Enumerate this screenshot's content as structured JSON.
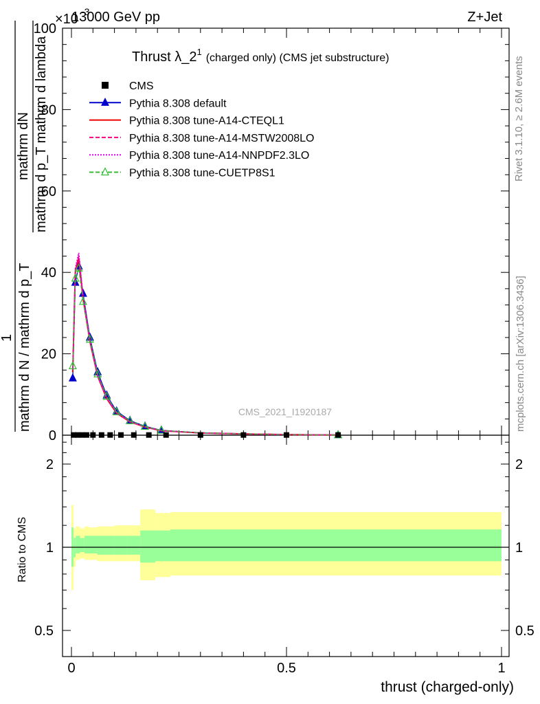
{
  "header": {
    "left": "13000 GeV pp",
    "right": "Z+Jet",
    "exponent": "×10",
    "exponent_power": "-3"
  },
  "side": {
    "rivet": "Rivet 3.1.10, ≥ 2.6M events",
    "mcplots": "mcplots.cern.ch [arXiv:1306.3436]"
  },
  "chart_data": {
    "type": "line",
    "title_main": "Thrust λ_2",
    "title_sup": "1",
    "title_rest": "(charged only) (CMS jet substructure)",
    "watermark": "CMS_2021_I1920187",
    "ylabel_num": "mathrm dN",
    "ylabel_den": "mathrm d p_T mathrm d lambda",
    "ylabel_num2": "1",
    "ylabel_den2": "mathrm d N / mathrm d p_T",
    "xlabel": "thrust (charged-only)",
    "ratio_ylabel": "Ratio to CMS",
    "xlim": [
      0,
      1
    ],
    "ylim": [
      0,
      100
    ],
    "ratio_ylim": [
      0.4,
      2.5
    ],
    "x_ticks": [
      "0",
      "0.5",
      "1"
    ],
    "y_ticks": [
      "0",
      "20",
      "40",
      "60",
      "80",
      "100"
    ],
    "ratio_ticks": [
      "0.5",
      "1",
      "2"
    ],
    "legend": [
      {
        "label": "CMS",
        "color": "#000000",
        "style": "square"
      },
      {
        "label": "Pythia 8.308 default",
        "color": "#0000cc",
        "style": "solid-triangle"
      },
      {
        "label": "Pythia 8.308 tune-A14-CTEQL1",
        "color": "#ee0000",
        "style": "solid"
      },
      {
        "label": "Pythia 8.308 tune-A14-MSTW2008LO",
        "color": "#ff0080",
        "style": "dashed"
      },
      {
        "label": "Pythia 8.308 tune-A14-NNPDF2.3LO",
        "color": "#e000e0",
        "style": "dotted"
      },
      {
        "label": "Pythia 8.308 tune-CUETP8S1",
        "color": "#33bb33",
        "style": "dashed-open-triangle"
      }
    ],
    "data_x": [
      0.005,
      0.015,
      0.025,
      0.035,
      0.05,
      0.07,
      0.09,
      0.115,
      0.145,
      0.18,
      0.22,
      0.3,
      0.4,
      0.5,
      0.62
    ],
    "data_y": [
      0.05,
      0.05,
      0.05,
      0.05,
      0.05,
      0.05,
      0.05,
      0.05,
      0.05,
      0.05,
      0.05,
      0.05,
      0.05,
      0.05,
      0.05
    ],
    "series": [
      {
        "name": "Pythia 8.308 default",
        "x": [
          0.003,
          0.009,
          0.017,
          0.027,
          0.043,
          0.061,
          0.082,
          0.105,
          0.136,
          0.171,
          0.209,
          0.3,
          0.4,
          0.5,
          0.62
        ],
        "y": [
          14.0,
          37.5,
          41.5,
          34.8,
          24.0,
          15.5,
          9.8,
          5.9,
          3.6,
          2.2,
          1.2,
          0.6,
          0.35,
          0.15,
          0.05
        ]
      },
      {
        "name": "Pythia 8.308 tune-A14-CTEQL1",
        "x": [
          0.003,
          0.009,
          0.017,
          0.027,
          0.043,
          0.061,
          0.082,
          0.105,
          0.136,
          0.171,
          0.209,
          0.3,
          0.4,
          0.5,
          0.62
        ],
        "y": [
          15.5,
          40.0,
          43.5,
          33.5,
          23.0,
          14.5,
          9.0,
          5.4,
          3.3,
          2.0,
          1.1,
          0.55,
          0.32,
          0.14,
          0.05
        ]
      },
      {
        "name": "Pythia 8.308 tune-A14-MSTW2008LO",
        "x": [
          0.003,
          0.009,
          0.017,
          0.027,
          0.043,
          0.061,
          0.082,
          0.105,
          0.136,
          0.171,
          0.209,
          0.3,
          0.4,
          0.5,
          0.62
        ],
        "y": [
          16.0,
          40.5,
          44.0,
          33.8,
          23.2,
          14.6,
          9.1,
          5.5,
          3.35,
          2.05,
          1.1,
          0.55,
          0.32,
          0.14,
          0.05
        ]
      },
      {
        "name": "Pythia 8.308 tune-A14-NNPDF2.3LO",
        "x": [
          0.003,
          0.009,
          0.017,
          0.027,
          0.043,
          0.061,
          0.082,
          0.105,
          0.136,
          0.171,
          0.209,
          0.3,
          0.4,
          0.5,
          0.62
        ],
        "y": [
          16.5,
          41.0,
          44.8,
          34.0,
          23.4,
          14.7,
          9.2,
          5.5,
          3.35,
          2.05,
          1.1,
          0.55,
          0.32,
          0.14,
          0.05
        ]
      },
      {
        "name": "Pythia 8.308 tune-CUETP8S1",
        "x": [
          0.003,
          0.009,
          0.017,
          0.027,
          0.043,
          0.061,
          0.082,
          0.105,
          0.136,
          0.171,
          0.209,
          0.3,
          0.4,
          0.5,
          0.62
        ],
        "y": [
          17.0,
          38.5,
          41.0,
          32.8,
          23.5,
          15.0,
          9.5,
          5.7,
          3.5,
          2.1,
          1.15,
          0.58,
          0.33,
          0.14,
          0.05
        ]
      }
    ],
    "ratio_bands": {
      "edges": [
        0.0,
        0.005,
        0.01,
        0.02,
        0.03,
        0.04,
        0.06,
        0.08,
        0.1,
        0.13,
        0.16,
        0.195,
        0.23,
        1.0
      ],
      "yellow_lo": [
        0.7,
        0.85,
        0.9,
        0.91,
        0.9,
        0.9,
        0.89,
        0.89,
        0.89,
        0.89,
        0.76,
        0.78,
        0.79
      ],
      "yellow_hi": [
        1.42,
        1.17,
        1.19,
        1.17,
        1.19,
        1.18,
        1.19,
        1.19,
        1.2,
        1.2,
        1.37,
        1.33,
        1.34
      ],
      "green_lo": [
        0.85,
        0.92,
        0.95,
        0.96,
        0.95,
        0.95,
        0.94,
        0.94,
        0.94,
        0.94,
        0.88,
        0.89,
        0.89
      ],
      "green_hi": [
        1.18,
        1.08,
        1.1,
        1.08,
        1.1,
        1.1,
        1.1,
        1.1,
        1.1,
        1.1,
        1.15,
        1.15,
        1.16
      ]
    }
  }
}
